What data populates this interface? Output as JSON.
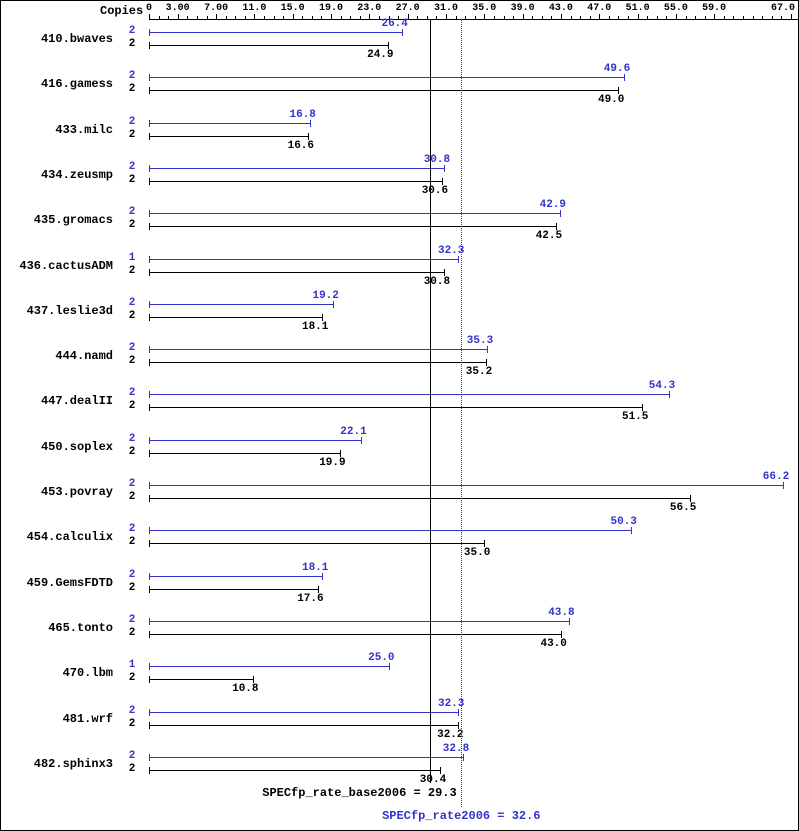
{
  "chart_data": {
    "type": "bar",
    "orientation": "horizontal",
    "copies_header": "Copies",
    "xlim": [
      0,
      67
    ],
    "minor_tick_step": 1,
    "grid": false,
    "colors": {
      "peak": "#3333cc",
      "base": "#000000"
    },
    "axis_ticks": [
      {
        "value": 0,
        "label": "0"
      },
      {
        "value": 3,
        "label": "3.00"
      },
      {
        "value": 7,
        "label": "7.00"
      },
      {
        "value": 11,
        "label": "11.0"
      },
      {
        "value": 15,
        "label": "15.0"
      },
      {
        "value": 19,
        "label": "19.0"
      },
      {
        "value": 23,
        "label": "23.0"
      },
      {
        "value": 27,
        "label": "27.0"
      },
      {
        "value": 31,
        "label": "31.0"
      },
      {
        "value": 35,
        "label": "35.0"
      },
      {
        "value": 39,
        "label": "39.0"
      },
      {
        "value": 43,
        "label": "43.0"
      },
      {
        "value": 47,
        "label": "47.0"
      },
      {
        "value": 51,
        "label": "51.0"
      },
      {
        "value": 55,
        "label": "55.0"
      },
      {
        "value": 59,
        "label": "59.0"
      },
      {
        "value": 67,
        "label": "67.0",
        "edge": true
      }
    ],
    "benchmarks": [
      {
        "name": "410.bwaves",
        "rows": [
          {
            "kind": "peak",
            "copies": "2",
            "value": 26.4,
            "label": "26.4"
          },
          {
            "kind": "base",
            "copies": "2",
            "value": 24.9,
            "label": "24.9"
          }
        ]
      },
      {
        "name": "416.gamess",
        "rows": [
          {
            "kind": "peak",
            "copies": "2",
            "value": 49.6,
            "label": "49.6"
          },
          {
            "kind": "base",
            "copies": "2",
            "value": 49.0,
            "label": "49.0"
          }
        ]
      },
      {
        "name": "433.milc",
        "rows": [
          {
            "kind": "peak",
            "copies": "2",
            "value": 16.8,
            "label": "16.8"
          },
          {
            "kind": "base",
            "copies": "2",
            "value": 16.6,
            "label": "16.6"
          }
        ]
      },
      {
        "name": "434.zeusmp",
        "rows": [
          {
            "kind": "peak",
            "copies": "2",
            "value": 30.8,
            "label": "30.8"
          },
          {
            "kind": "base",
            "copies": "2",
            "value": 30.6,
            "label": "30.6"
          }
        ]
      },
      {
        "name": "435.gromacs",
        "rows": [
          {
            "kind": "peak",
            "copies": "2",
            "value": 42.9,
            "label": "42.9"
          },
          {
            "kind": "base",
            "copies": "2",
            "value": 42.5,
            "label": "42.5"
          }
        ]
      },
      {
        "name": "436.cactusADM",
        "rows": [
          {
            "kind": "peak",
            "copies": "1",
            "value": 32.3,
            "label": "32.3"
          },
          {
            "kind": "base",
            "copies": "2",
            "value": 30.8,
            "label": "30.8"
          }
        ]
      },
      {
        "name": "437.leslie3d",
        "rows": [
          {
            "kind": "peak",
            "copies": "2",
            "value": 19.2,
            "label": "19.2"
          },
          {
            "kind": "base",
            "copies": "2",
            "value": 18.1,
            "label": "18.1"
          }
        ]
      },
      {
        "name": "444.namd",
        "rows": [
          {
            "kind": "peak",
            "copies": "2",
            "value": 35.3,
            "label": "35.3"
          },
          {
            "kind": "base",
            "copies": "2",
            "value": 35.2,
            "label": "35.2"
          }
        ]
      },
      {
        "name": "447.dealII",
        "rows": [
          {
            "kind": "peak",
            "copies": "2",
            "value": 54.3,
            "label": "54.3"
          },
          {
            "kind": "base",
            "copies": "2",
            "value": 51.5,
            "label": "51.5"
          }
        ]
      },
      {
        "name": "450.soplex",
        "rows": [
          {
            "kind": "peak",
            "copies": "2",
            "value": 22.1,
            "label": "22.1"
          },
          {
            "kind": "base",
            "copies": "2",
            "value": 19.9,
            "label": "19.9"
          }
        ]
      },
      {
        "name": "453.povray",
        "rows": [
          {
            "kind": "peak",
            "copies": "2",
            "value": 66.2,
            "label": "66.2"
          },
          {
            "kind": "base",
            "copies": "2",
            "value": 56.5,
            "label": "56.5"
          }
        ]
      },
      {
        "name": "454.calculix",
        "rows": [
          {
            "kind": "peak",
            "copies": "2",
            "value": 50.3,
            "label": "50.3"
          },
          {
            "kind": "base",
            "copies": "2",
            "value": 35.0,
            "label": "35.0"
          }
        ]
      },
      {
        "name": "459.GemsFDTD",
        "rows": [
          {
            "kind": "peak",
            "copies": "2",
            "value": 18.1,
            "label": "18.1"
          },
          {
            "kind": "base",
            "copies": "2",
            "value": 17.6,
            "label": "17.6"
          }
        ]
      },
      {
        "name": "465.tonto",
        "rows": [
          {
            "kind": "peak",
            "copies": "2",
            "value": 43.8,
            "label": "43.8"
          },
          {
            "kind": "base",
            "copies": "2",
            "value": 43.0,
            "label": "43.0"
          }
        ]
      },
      {
        "name": "470.lbm",
        "rows": [
          {
            "kind": "peak",
            "copies": "1",
            "value": 25.0,
            "label": "25.0"
          },
          {
            "kind": "base",
            "copies": "2",
            "value": 10.8,
            "label": "10.8"
          }
        ]
      },
      {
        "name": "481.wrf",
        "rows": [
          {
            "kind": "peak",
            "copies": "2",
            "value": 32.3,
            "label": "32.3"
          },
          {
            "kind": "base",
            "copies": "2",
            "value": 32.2,
            "label": "32.2"
          }
        ]
      },
      {
        "name": "482.sphinx3",
        "rows": [
          {
            "kind": "peak",
            "copies": "2",
            "value": 32.8,
            "label": "32.8"
          },
          {
            "kind": "base",
            "copies": "2",
            "value": 30.4,
            "label": "30.4"
          }
        ]
      }
    ],
    "reference_lines": [
      {
        "kind": "base",
        "value": 29.3,
        "style": "solid",
        "label": "SPECfp_rate_base2006 = 29.3"
      },
      {
        "kind": "peak",
        "value": 32.6,
        "style": "dotted",
        "label": "SPECfp_rate2006 = 32.6"
      }
    ]
  }
}
